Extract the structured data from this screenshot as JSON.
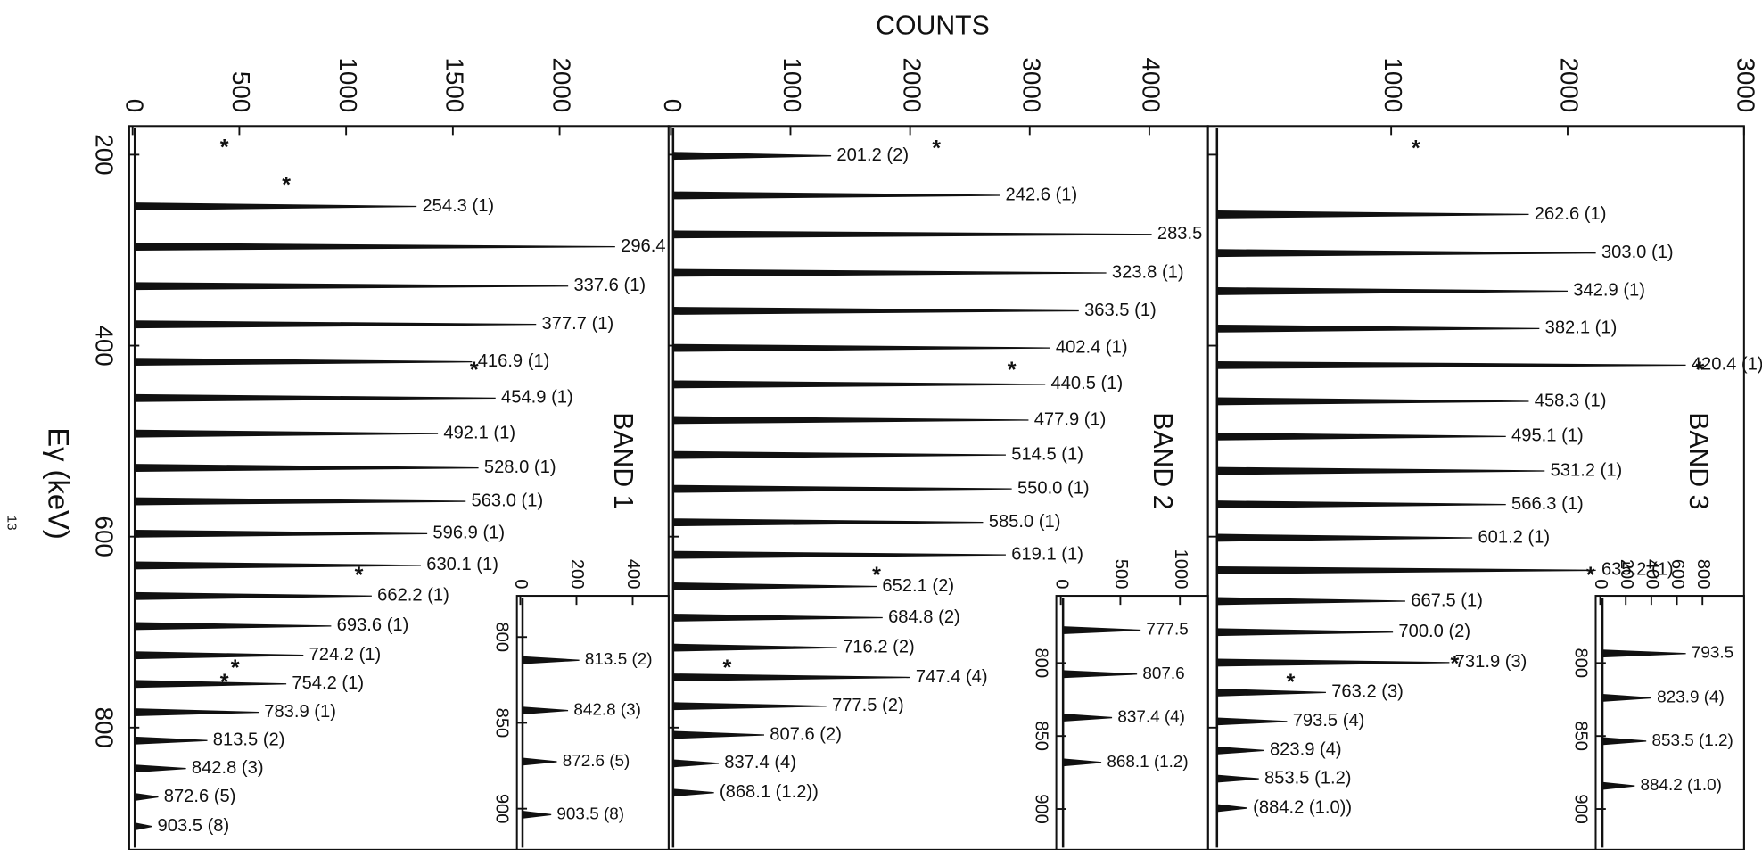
{
  "chart_data": [
    {
      "type": "spectrum",
      "title": "BAND 1",
      "ylabel": "COUNTS",
      "xlabel": "Eγ (keV)",
      "annotation": "13",
      "color": "#111111",
      "xlim": [
        170,
        928
      ],
      "xticks": [
        200,
        400,
        600,
        800
      ],
      "ylim": [
        0,
        2500
      ],
      "yticks": [
        0,
        500,
        1000,
        1500,
        2000
      ],
      "peaks": {
        "x": [
          254.3,
          296.4,
          337.6,
          377.7,
          416.9,
          454.9,
          492.1,
          528.0,
          563.0,
          596.9,
          630.1,
          662.2,
          693.6,
          724.2,
          754.2,
          783.9,
          813.5,
          842.8,
          872.6,
          903.5
        ],
        "values": [
          1330,
          2260,
          2040,
          1890,
          1590,
          1700,
          1430,
          1620,
          1560,
          1380,
          1350,
          1120,
          930,
          800,
          720,
          590,
          350,
          250,
          120,
          90
        ],
        "labels": [
          "254.3 (1)",
          "296.4 (1)",
          "337.6 (1)",
          "377.7 (1)",
          "416.9 (1)",
          "454.9 (1)",
          "492.1 (1)",
          "528.0 (1)",
          "563.0 (1)",
          "596.9 (1)",
          "630.1 (1)",
          "662.2 (1)",
          "693.6 (1)",
          "724.2 (1)",
          "754.2 (1)",
          "783.9 (1)",
          "813.5 (2)",
          "842.8 (3)",
          "872.6 (5)",
          "903.5 (8)"
        ]
      },
      "markers": {
        "label": "*",
        "x": [
          188,
          227,
          421,
          636,
          733,
          748
        ],
        "values": [
          430,
          720,
          1600,
          1060,
          480,
          430
        ]
      }
    },
    {
      "type": "spectrum",
      "title": "BAND 2",
      "color": "#111111",
      "xlim": [
        170,
        928
      ],
      "ylim": [
        0,
        4500
      ],
      "yticks": [
        0,
        1000,
        2000,
        3000,
        4000
      ],
      "peaks": {
        "x": [
          201.2,
          242.6,
          283.5,
          323.8,
          363.5,
          402.4,
          440.5,
          477.9,
          514.5,
          550.0,
          585.0,
          619.1,
          652.1,
          684.8,
          716.2,
          747.4,
          777.5,
          807.6,
          837.4,
          868.1
        ],
        "values": [
          1340,
          2750,
          4020,
          3640,
          3410,
          3170,
          3130,
          2990,
          2800,
          2850,
          2610,
          2800,
          1720,
          1770,
          1390,
          2000,
          1300,
          780,
          400,
          360
        ],
        "labels": [
          "201.2 (2)",
          "242.6 (1)",
          "283.5 (1)",
          "323.8 (1)",
          "363.5 (1)",
          "402.4 (1)",
          "440.5 (1)",
          "477.9 (1)",
          "514.5 (1)",
          "550.0 (1)",
          "585.0 (1)",
          "619.1 (1)",
          "652.1 (2)",
          "684.8 (2)",
          "716.2 (2)",
          "747.4 (4)",
          "777.5 (2)",
          "807.6 (2)",
          "837.4 (4)",
          "(868.1 (1.2))"
        ]
      },
      "markers": {
        "label": "*",
        "x": [
          189,
          421,
          636,
          733
        ],
        "values": [
          2220,
          2850,
          1720,
          470
        ]
      }
    },
    {
      "type": "spectrum",
      "title": "BAND 3",
      "color": "#111111",
      "xlim": [
        170,
        928
      ],
      "ylim": [
        0,
        3000
      ],
      "yticks": [
        1000,
        2000,
        3000
      ],
      "peaks": {
        "x": [
          262.6,
          303.0,
          342.9,
          382.1,
          420.4,
          458.3,
          495.1,
          531.2,
          566.3,
          601.2,
          635.2,
          667.5,
          700.0,
          731.9,
          763.2,
          793.5,
          823.9,
          853.5,
          884.2
        ],
        "values": [
          1780,
          2160,
          2000,
          1840,
          2670,
          1780,
          1650,
          1870,
          1650,
          1460,
          2160,
          1080,
          1010,
          1330,
          630,
          410,
          280,
          250,
          185
        ],
        "labels": [
          "262.6 (1)",
          "303.0 (1)",
          "342.9 (1)",
          "382.1 (1)",
          "420.4 (1)",
          "458.3 (1)",
          "495.1 (1)",
          "531.2 (1)",
          "566.3 (1)",
          "601.2 (1)",
          "635.2 (1)",
          "667.5 (1)",
          "700.0 (2)",
          "731.9 (3)",
          "763.2 (3)",
          "793.5 (4)",
          "823.9 (4)",
          "853.5 (1.2)",
          "(884.2 (1.0))"
        ]
      },
      "markers": {
        "label": "*",
        "x": [
          189,
          421,
          636,
          729,
          748
        ],
        "values": [
          1140,
          2750,
          2130,
          1360,
          430
        ]
      }
    },
    {
      "type": "spectrum",
      "color": "#111111",
      "xlim": [
        776,
        924
      ],
      "xticks": [
        800,
        850,
        900
      ],
      "ylim": [
        0,
        528
      ],
      "yticks": [
        0,
        200,
        400
      ],
      "peaks": {
        "x": [
          813.5,
          842.8,
          872.6,
          903.5
        ],
        "values": [
          210,
          170,
          130,
          110
        ],
        "labels": [
          "813.5 (2)",
          "842.8 (3)",
          "872.6 (5)",
          "903.5 (8)"
        ]
      }
    },
    {
      "type": "spectrum",
      "color": "#111111",
      "xlim": [
        754,
        928
      ],
      "xticks": [
        800,
        850,
        900
      ],
      "ylim": [
        0,
        1236
      ],
      "yticks": [
        0,
        500,
        1000
      ],
      "peaks": {
        "x": [
          777.5,
          807.6,
          837.4,
          868.1
        ],
        "values": [
          670,
          640,
          430,
          340
        ],
        "labels": [
          "777.5",
          "807.6",
          "837.4 (4)",
          "868.1 (1.2)"
        ]
      }
    },
    {
      "type": "spectrum",
      "color": "#111111",
      "xlim": [
        754,
        928
      ],
      "xticks": [
        800,
        850,
        900
      ],
      "ylim": [
        0,
        1125
      ],
      "yticks": [
        0,
        200,
        400,
        600,
        800
      ],
      "peaks": {
        "x": [
          793.5,
          823.9,
          853.5,
          884.2
        ],
        "values": [
          670,
          400,
          360,
          270
        ],
        "labels": [
          "793.5",
          "823.9 (4)",
          "853.5 (1.2)",
          "884.2 (1.0)"
        ]
      }
    }
  ]
}
